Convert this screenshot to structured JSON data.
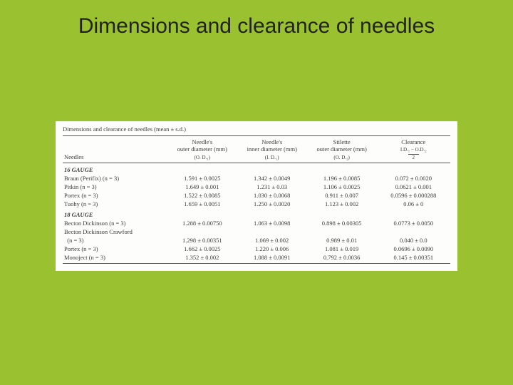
{
  "title": "Dimensions and clearance of needles",
  "caption": "Dimensions and clearance of needles (mean ± s.d.)",
  "columns": {
    "c0": "Needles",
    "c1_l1": "Needle's",
    "c1_l2": "outer diameter (mm)",
    "c1_l3": "(O. D.₁)",
    "c2_l1": "Needle's",
    "c2_l2": "inner diameter (mm)",
    "c2_l3": "(I. D.₁)",
    "c3_l1": "Stilette",
    "c3_l2": "outer diameter (mm)",
    "c3_l3": "(O. D.₂)",
    "c4_l1": "Clearance",
    "c4_l2": "I.D.₁ − O.D.₂",
    "c4_l3": "2"
  },
  "sections": [
    {
      "heading": "16 GAUGE",
      "rows": [
        {
          "label": "Braun (Perifix) (n = 3)",
          "c1": "1.591 ± 0.0025",
          "c2": "1.342 ± 0.0049",
          "c3": "1.196 ± 0.0085",
          "c4": "0.072 ± 0.0020"
        },
        {
          "label": "Pitkin (n = 3)",
          "c1": "1.649 ± 0.001",
          "c2": "1.231 ± 0.03",
          "c3": "1.106 ± 0.0025",
          "c4": "0.0621 ± 0.001"
        },
        {
          "label": "Portex (n = 3)",
          "c1": "1.522 ± 0.0085",
          "c2": "1.030 ± 0.0068",
          "c3": "0.911 ± 0.007",
          "c4": "0.0596 ± 0.000288"
        },
        {
          "label": "Tuohy (n = 3)",
          "c1": "1.659 ± 0.0051",
          "c2": "1.250 ± 0.0020",
          "c3": "1.123 ± 0.002",
          "c4": "0.06 ± 0"
        }
      ]
    },
    {
      "heading": "18 GAUGE",
      "rows": [
        {
          "label": "Becton Dickinson (n = 3)",
          "c1": "1.288 ± 0.00750",
          "c2": "1.063 ± 0.0098",
          "c3": "0.898 ± 0.00305",
          "c4": "0.0773 ± 0.0050"
        },
        {
          "label": "Becton Dickinson Crawford",
          "c1": "",
          "c2": "",
          "c3": "",
          "c4": ""
        },
        {
          "label": "  (n = 3)",
          "c1": "1.298 ± 0.00351",
          "c2": "1.069 ± 0.002",
          "c3": "0.989 ± 0.01",
          "c4": "0.040 ± 0.0"
        },
        {
          "label": "Portex (n = 3)",
          "c1": "1.662 ± 0.0025",
          "c2": "1.220 ± 0.006",
          "c3": "1.081 ± 0.019",
          "c4": "0.0696 ± 0.0090"
        },
        {
          "label": "Monoject (n = 3)",
          "c1": "1.352 ± 0.002",
          "c2": "1.088 ± 0.0091",
          "c3": "0.792 ± 0.0036",
          "c4": "0.145 ± 0.00351"
        }
      ]
    }
  ]
}
